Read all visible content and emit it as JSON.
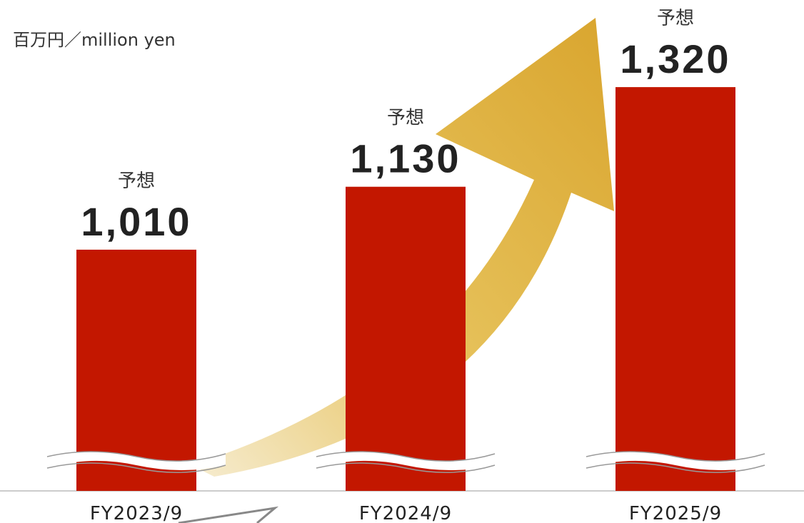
{
  "chart_data": {
    "type": "bar",
    "unit_label": "百万円／million yen",
    "categories": [
      "FY2023/9",
      "FY2024/9",
      "FY2025/9"
    ],
    "values": [
      1010,
      1130,
      1320
    ],
    "value_labels": [
      "1,010",
      "1,130",
      "1,320"
    ],
    "annotations": [
      "予想",
      "予想",
      "予想"
    ],
    "color": "#c31700",
    "ylim": [
      550,
      1380
    ],
    "axis_break": true
  }
}
